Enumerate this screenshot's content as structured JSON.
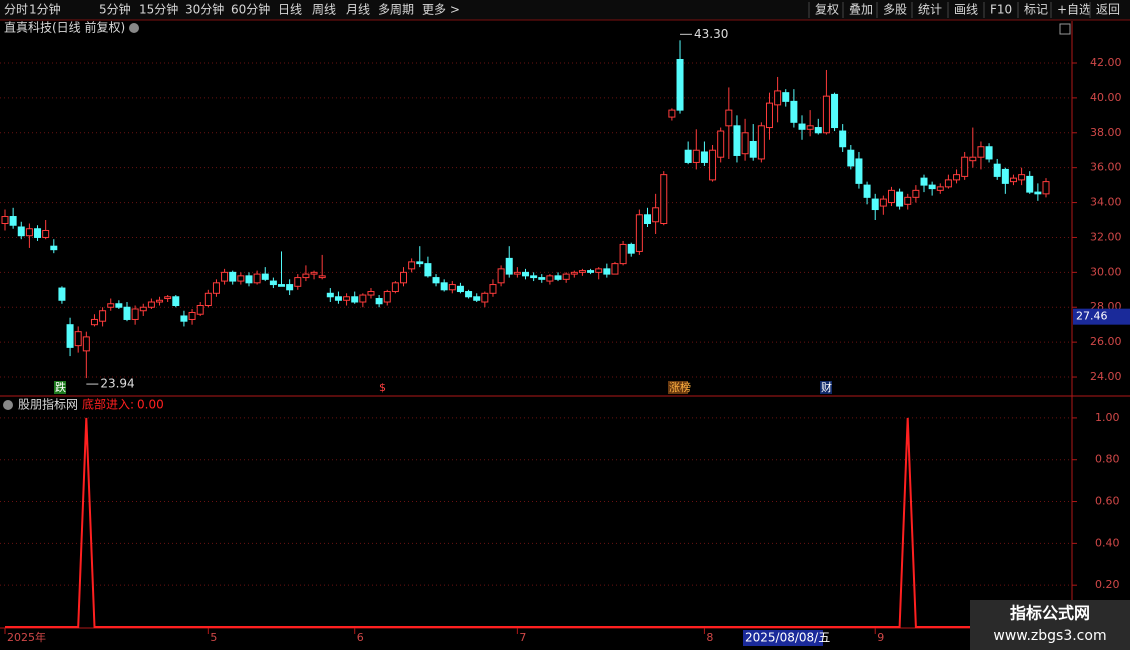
{
  "toolbar": {
    "periods": [
      "分时",
      "1分钟",
      "5分钟",
      "15分钟",
      "30分钟",
      "60分钟",
      "日线",
      "周线",
      "月线",
      "多周期",
      "更多 >"
    ],
    "active": 6,
    "tools": [
      "复权",
      "叠加",
      "多股",
      "统计",
      "画线",
      "F10",
      "标记",
      "+自选",
      "返回"
    ]
  },
  "watermark": {
    "title": "指标公式网",
    "url": "www.zbgs3.com"
  },
  "chart_data": [
    {
      "type": "candlestick",
      "title": "直真科技(日线 前复权)",
      "up_color": "#ff3c3c",
      "down_color": "#54fcfc",
      "open": [
        32.8,
        33.2,
        32.6,
        32.1,
        32.5,
        32.0,
        31.5,
        29.1,
        27.0,
        25.8,
        25.5,
        27.0,
        27.2,
        28.0,
        28.2,
        28.0,
        27.3,
        27.8,
        28.0,
        28.3,
        28.5,
        28.6,
        27.5,
        27.3,
        27.6,
        28.1,
        28.8,
        29.5,
        30.0,
        29.5,
        29.8,
        29.4,
        29.9,
        29.5,
        29.3,
        29.3,
        29.2,
        29.7,
        29.9,
        29.7,
        28.8,
        28.6,
        28.4,
        28.6,
        28.3,
        28.7,
        28.5,
        28.3,
        28.9,
        29.4,
        30.2,
        30.6,
        30.5,
        29.7,
        29.4,
        29.0,
        29.2,
        28.9,
        28.6,
        28.3,
        28.8,
        29.4,
        30.8,
        29.9,
        30.0,
        29.8,
        29.7,
        29.5,
        29.8,
        29.6,
        29.9,
        30.0,
        30.1,
        30.0,
        30.2,
        29.9,
        30.5,
        31.6,
        31.2,
        33.3,
        32.9,
        32.8,
        38.9,
        42.2,
        37.0,
        36.3,
        36.9,
        35.3,
        36.6,
        38.4,
        38.4,
        36.8,
        37.5,
        36.5,
        38.3,
        39.6,
        40.3,
        39.8,
        38.5,
        38.2,
        38.3,
        38.0,
        40.2,
        38.1,
        37.0,
        36.5,
        35.0,
        34.2,
        33.8,
        34.0,
        34.6,
        33.9,
        34.3,
        35.4,
        35.0,
        34.7,
        34.9,
        35.3,
        35.5,
        36.4,
        36.6,
        37.2,
        36.2,
        35.9,
        35.2,
        35.3,
        35.5,
        34.6,
        34.5
      ],
      "high": [
        33.6,
        33.7,
        32.9,
        32.8,
        32.7,
        33.0,
        31.9,
        29.2,
        27.4,
        26.9,
        26.6,
        27.6,
        28.0,
        28.5,
        28.4,
        28.3,
        28.1,
        28.2,
        28.5,
        28.6,
        28.7,
        28.7,
        27.8,
        27.9,
        28.3,
        29.0,
        29.6,
        30.2,
        30.1,
        30.0,
        30.0,
        30.1,
        30.3,
        29.7,
        31.2,
        29.6,
        29.9,
        30.4,
        30.1,
        31.0,
        29.1,
        28.9,
        28.8,
        28.9,
        28.8,
        29.1,
        28.7,
        29.0,
        29.5,
        30.3,
        30.8,
        31.5,
        30.9,
        29.9,
        29.6,
        29.5,
        29.4,
        29.0,
        28.8,
        28.9,
        29.6,
        30.4,
        31.5,
        30.3,
        30.2,
        30.0,
        29.9,
        29.9,
        30.0,
        30.0,
        30.1,
        30.2,
        30.2,
        30.3,
        30.5,
        30.6,
        31.8,
        31.7,
        33.6,
        33.7,
        34.5,
        35.8,
        39.4,
        43.3,
        37.5,
        38.2,
        37.5,
        37.3,
        38.3,
        40.6,
        39.0,
        38.8,
        38.5,
        38.6,
        40.3,
        41.2,
        40.5,
        40.5,
        39.0,
        39.3,
        38.8,
        41.6,
        40.3,
        38.5,
        37.3,
        36.9,
        35.2,
        34.5,
        34.4,
        34.9,
        34.8,
        34.5,
        35.0,
        35.6,
        35.2,
        35.1,
        35.6,
        35.9,
        36.9,
        38.3,
        37.5,
        37.4,
        36.5,
        36.0,
        35.6,
        36.0,
        35.8,
        35.1,
        35.4
      ],
      "low": [
        32.4,
        32.5,
        31.9,
        31.4,
        31.8,
        31.9,
        31.1,
        28.2,
        25.2,
        25.4,
        23.94,
        26.9,
        26.9,
        27.8,
        27.9,
        27.2,
        27.0,
        27.5,
        27.9,
        28.1,
        28.3,
        28.0,
        26.9,
        27.0,
        27.5,
        28.0,
        28.6,
        29.3,
        29.3,
        29.3,
        29.2,
        29.3,
        29.5,
        29.1,
        29.2,
        28.7,
        29.0,
        29.5,
        29.6,
        29.6,
        28.3,
        28.2,
        28.1,
        28.2,
        28.0,
        28.5,
        28.0,
        28.1,
        28.8,
        29.2,
        30.0,
        30.3,
        29.7,
        29.2,
        28.9,
        28.8,
        28.8,
        28.5,
        28.3,
        28.0,
        28.6,
        29.2,
        29.7,
        29.7,
        29.6,
        29.5,
        29.4,
        29.3,
        29.5,
        29.4,
        29.7,
        29.8,
        29.9,
        29.6,
        29.7,
        29.9,
        30.4,
        30.9,
        31.0,
        32.6,
        32.2,
        32.7,
        38.7,
        39.1,
        36.2,
        35.9,
        36.1,
        35.2,
        36.3,
        36.5,
        36.3,
        36.4,
        36.4,
        36.3,
        37.6,
        38.6,
        39.5,
        38.3,
        37.6,
        37.8,
        37.9,
        37.9,
        38.1,
        36.9,
        35.9,
        34.8,
        33.9,
        33.0,
        33.3,
        33.8,
        33.6,
        33.6,
        34.0,
        34.6,
        34.4,
        34.5,
        34.8,
        35.1,
        35.3,
        36.0,
        35.9,
        36.3,
        35.3,
        34.5,
        35.0,
        35.0,
        34.5,
        34.1,
        34.3
      ],
      "close": [
        33.2,
        32.7,
        32.1,
        32.5,
        32.0,
        32.4,
        31.3,
        28.4,
        25.7,
        26.6,
        26.3,
        27.3,
        27.8,
        28.2,
        28.0,
        27.3,
        27.9,
        28.0,
        28.3,
        28.4,
        28.6,
        28.1,
        27.2,
        27.7,
        28.1,
        28.8,
        29.4,
        30.0,
        29.5,
        29.8,
        29.4,
        29.9,
        29.6,
        29.3,
        29.2,
        29.0,
        29.7,
        29.9,
        30.0,
        29.8,
        28.6,
        28.4,
        28.6,
        28.3,
        28.7,
        28.9,
        28.2,
        28.9,
        29.4,
        30.0,
        30.6,
        30.5,
        29.8,
        29.4,
        29.0,
        29.3,
        28.9,
        28.6,
        28.4,
        28.8,
        29.3,
        30.2,
        29.9,
        30.0,
        29.8,
        29.7,
        29.6,
        29.8,
        29.6,
        29.9,
        30.0,
        30.1,
        30.0,
        30.2,
        29.9,
        30.5,
        31.6,
        31.1,
        33.3,
        32.8,
        33.7,
        35.6,
        39.3,
        39.3,
        36.3,
        37.0,
        36.3,
        37.0,
        38.1,
        39.3,
        36.7,
        38.0,
        36.6,
        38.4,
        39.7,
        40.4,
        39.8,
        38.6,
        38.2,
        38.4,
        38.0,
        40.1,
        38.3,
        37.2,
        36.1,
        35.1,
        34.3,
        33.6,
        34.2,
        34.7,
        33.8,
        34.3,
        34.7,
        35.0,
        34.8,
        34.9,
        35.3,
        35.6,
        36.6,
        36.6,
        37.2,
        36.5,
        35.5,
        35.1,
        35.4,
        35.6,
        34.6,
        34.5,
        35.2
      ],
      "ylim": [
        22.97,
        43.49
      ],
      "yticks": [
        {
          "value": 24,
          "label": "24.00"
        },
        {
          "value": 26,
          "label": "26.00"
        },
        {
          "value": 28,
          "label": "28.00"
        },
        {
          "value": 30,
          "label": "30.00"
        },
        {
          "value": 32,
          "label": "32.00"
        },
        {
          "value": 34,
          "label": "34.00"
        },
        {
          "value": 36,
          "label": "36.00"
        },
        {
          "value": 38,
          "label": "38.00"
        },
        {
          "value": 40,
          "label": "40.00"
        },
        {
          "value": 42,
          "label": "42.00"
        }
      ],
      "grid": true,
      "annotations": [
        {
          "value": 43.3,
          "label": "43.30"
        },
        {
          "value": 23.94,
          "label": "23.94"
        }
      ],
      "cursor_price": {
        "value": 27.46,
        "label": "27.46"
      },
      "events": [
        {
          "label": "跌"
        },
        {
          "label": "$"
        },
        {
          "label": "涨榜"
        },
        {
          "label": "财"
        }
      ]
    },
    {
      "type": "line",
      "title": "股朋指标网",
      "series": [
        {
          "name": "底部进入:",
          "color": "#ff2020",
          "values": [
            0,
            0,
            0,
            0,
            0,
            0,
            0,
            0,
            0,
            0,
            1,
            0,
            0,
            0,
            0,
            0,
            0,
            0,
            0,
            0,
            0,
            0,
            0,
            0,
            0,
            0,
            0,
            0,
            0,
            0,
            0,
            0,
            0,
            0,
            0,
            0,
            0,
            0,
            0,
            0,
            0,
            0,
            0,
            0,
            0,
            0,
            0,
            0,
            0,
            0,
            0,
            0,
            0,
            0,
            0,
            0,
            0,
            0,
            0,
            0,
            0,
            0,
            0,
            0,
            0,
            0,
            0,
            0,
            0,
            0,
            0,
            0,
            0,
            0,
            0,
            0,
            0,
            0,
            0,
            0,
            0,
            0,
            0,
            0,
            0,
            0,
            0,
            0,
            0,
            0,
            0,
            0,
            0,
            0,
            0,
            0,
            0,
            0,
            0,
            0,
            0,
            0,
            0,
            0,
            0,
            0,
            0,
            0,
            0,
            0,
            0,
            1,
            0,
            0,
            0,
            0,
            0,
            0,
            0,
            0,
            0,
            0,
            0,
            0,
            0,
            0,
            0,
            0,
            0
          ]
        }
      ],
      "current_value": {
        "value": 0,
        "label": "0.00"
      },
      "ylim": [
        0,
        1.1
      ],
      "yticks": [
        {
          "value": 0.2,
          "label": "0.20"
        },
        {
          "value": 0.4,
          "label": "0.40"
        },
        {
          "value": 0.6,
          "label": "0.60"
        },
        {
          "value": 0.8,
          "label": "0.80"
        },
        {
          "value": 1,
          "label": "1.00"
        }
      ],
      "grid": true,
      "x_labels": [
        {
          "index": 0,
          "label": "2025年"
        },
        {
          "index": 25,
          "label": "5"
        },
        {
          "index": 43,
          "label": "6"
        },
        {
          "index": 63,
          "label": "7"
        },
        {
          "index": 86,
          "label": "8"
        },
        {
          "index": 107,
          "label": "9"
        }
      ],
      "cursor_date": "2025/08/08/五"
    }
  ]
}
